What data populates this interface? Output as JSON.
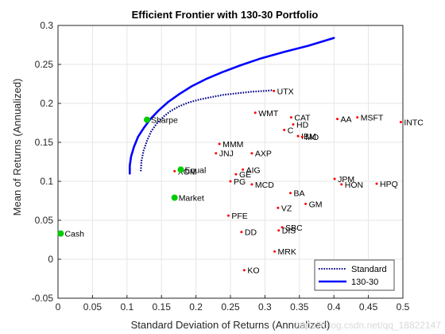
{
  "chart_data": {
    "type": "scatter",
    "title": "Efficient Frontier with 130-30 Portfolio",
    "xlabel": "Standard Deviation of Returns (Annualized)",
    "ylabel": "Mean of Returns (Annualized)",
    "xlim": [
      0,
      0.5
    ],
    "ylim": [
      -0.05,
      0.3
    ],
    "xticks": [
      "0",
      "0.05",
      "0.1",
      "0.15",
      "0.2",
      "0.25",
      "0.3",
      "0.35",
      "0.4",
      "0.45",
      "0.5"
    ],
    "yticks": [
      "-0.05",
      "0",
      "0.05",
      "0.1",
      "0.15",
      "0.2",
      "0.25",
      "0.3"
    ],
    "grid": true,
    "legend_position": "bottom-right",
    "colors": {
      "standard": "#00008b",
      "long_short": "#0000ff",
      "assets": "#ff0000",
      "highlight": "#00cc00"
    },
    "series": [
      {
        "name": "Standard",
        "style": "dotted",
        "x": [
          0.12,
          0.121,
          0.124,
          0.129,
          0.135,
          0.143,
          0.153,
          0.163,
          0.175,
          0.189,
          0.205,
          0.222,
          0.24,
          0.26,
          0.281,
          0.301,
          0.312
        ],
        "y": [
          0.113,
          0.126,
          0.139,
          0.152,
          0.164,
          0.174,
          0.183,
          0.19,
          0.196,
          0.201,
          0.205,
          0.208,
          0.211,
          0.213,
          0.215,
          0.216,
          0.217
        ]
      },
      {
        "name": "130-30",
        "style": "solid",
        "x": [
          0.104,
          0.104,
          0.106,
          0.11,
          0.116,
          0.124,
          0.134,
          0.146,
          0.16,
          0.176,
          0.194,
          0.214,
          0.238,
          0.265,
          0.295,
          0.328,
          0.363,
          0.4
        ],
        "y": [
          0.11,
          0.12,
          0.132,
          0.144,
          0.157,
          0.168,
          0.18,
          0.191,
          0.202,
          0.212,
          0.222,
          0.231,
          0.24,
          0.249,
          0.258,
          0.266,
          0.274,
          0.284
        ]
      }
    ],
    "assets": [
      {
        "name": "UTX",
        "x": 0.313,
        "y": 0.216
      },
      {
        "name": "WMT",
        "x": 0.286,
        "y": 0.188
      },
      {
        "name": "CAT",
        "x": 0.338,
        "y": 0.182
      },
      {
        "name": "HD",
        "x": 0.341,
        "y": 0.173
      },
      {
        "name": "C",
        "x": 0.328,
        "y": 0.166
      },
      {
        "name": "IBM",
        "x": 0.348,
        "y": 0.158
      },
      {
        "name": "MO",
        "x": 0.354,
        "y": 0.157
      },
      {
        "name": "AA",
        "x": 0.405,
        "y": 0.18
      },
      {
        "name": "MSFT",
        "x": 0.434,
        "y": 0.182
      },
      {
        "name": "INTC",
        "x": 0.497,
        "y": 0.176
      },
      {
        "name": "MMM",
        "x": 0.234,
        "y": 0.148
      },
      {
        "name": "JNJ",
        "x": 0.229,
        "y": 0.136
      },
      {
        "name": "AXP",
        "x": 0.281,
        "y": 0.136
      },
      {
        "name": "AIG",
        "x": 0.268,
        "y": 0.115
      },
      {
        "name": "GE",
        "x": 0.258,
        "y": 0.109
      },
      {
        "name": "XOM",
        "x": 0.169,
        "y": 0.113
      },
      {
        "name": "PG",
        "x": 0.25,
        "y": 0.1
      },
      {
        "name": "MCD",
        "x": 0.281,
        "y": 0.096
      },
      {
        "name": "JPM",
        "x": 0.401,
        "y": 0.103
      },
      {
        "name": "HON",
        "x": 0.411,
        "y": 0.096
      },
      {
        "name": "HPQ",
        "x": 0.462,
        "y": 0.097
      },
      {
        "name": "BA",
        "x": 0.337,
        "y": 0.085
      },
      {
        "name": "GM",
        "x": 0.359,
        "y": 0.071
      },
      {
        "name": "VZ",
        "x": 0.319,
        "y": 0.066
      },
      {
        "name": "PFE",
        "x": 0.247,
        "y": 0.056
      },
      {
        "name": "DD",
        "x": 0.266,
        "y": 0.035
      },
      {
        "name": "SBC",
        "x": 0.325,
        "y": 0.041
      },
      {
        "name": "DIS",
        "x": 0.32,
        "y": 0.037
      },
      {
        "name": "MRK",
        "x": 0.314,
        "y": 0.01
      },
      {
        "name": "KO",
        "x": 0.27,
        "y": -0.014
      }
    ],
    "highlighted_points": [
      {
        "name": "Sharpe",
        "x": 0.129,
        "y": 0.179
      },
      {
        "name": "Equal",
        "x": 0.178,
        "y": 0.115
      },
      {
        "name": "Market",
        "x": 0.169,
        "y": 0.079
      },
      {
        "name": "Cash",
        "x": 0.004,
        "y": 0.033
      }
    ]
  },
  "watermark": "https://blog.csdn.net/qq_18822147"
}
